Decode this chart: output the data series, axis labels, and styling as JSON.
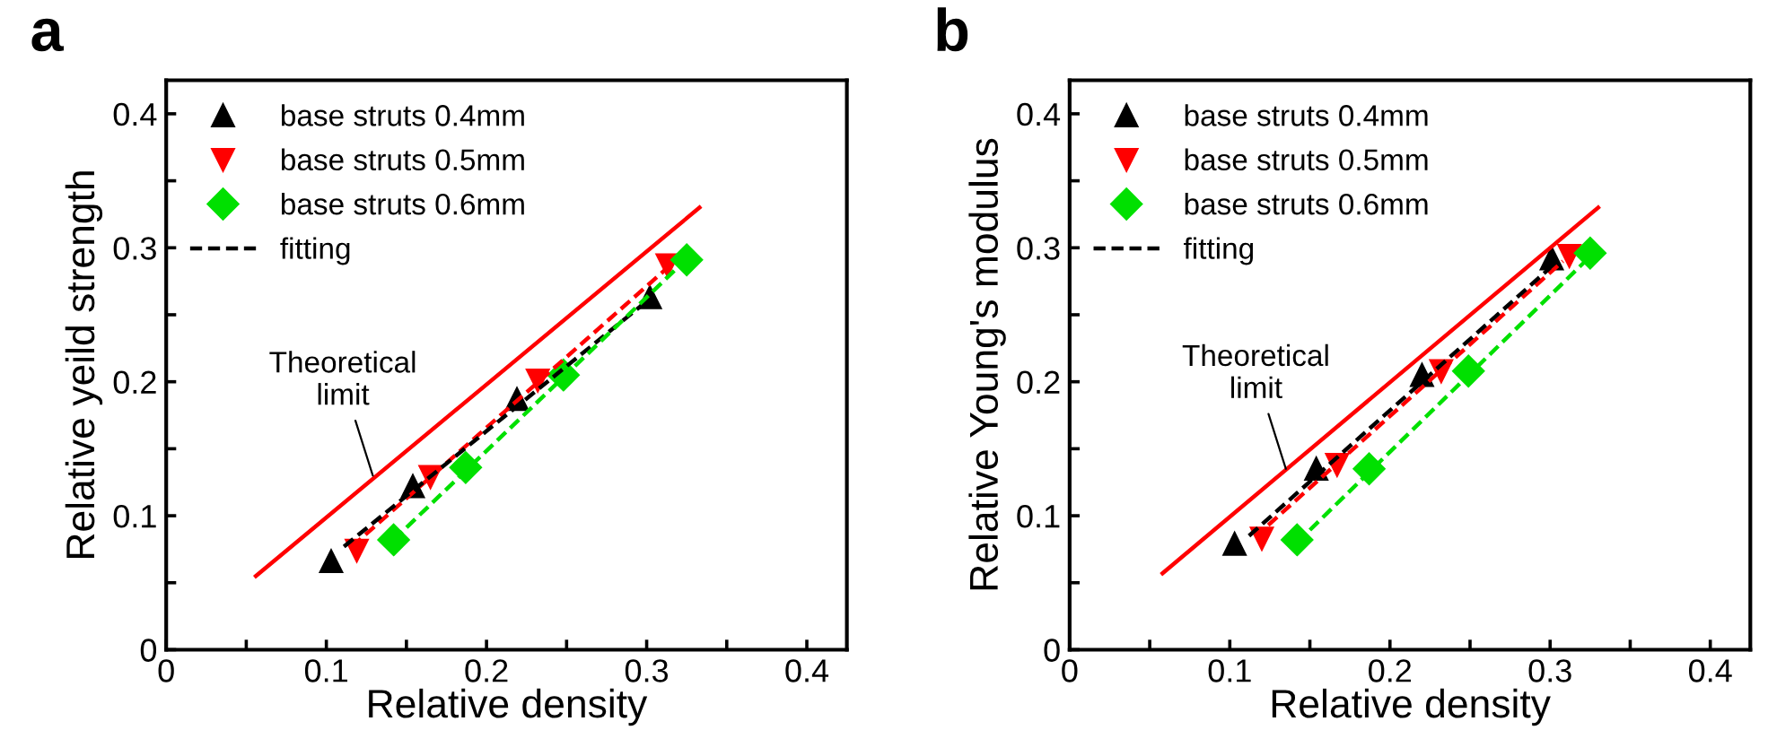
{
  "chart_data": [
    {
      "type": "scatter",
      "title": "a",
      "xlabel": "Relative density",
      "ylabel": "Relative yeild strength",
      "xlim": [
        0,
        0.425
      ],
      "ylim": [
        0,
        0.425
      ],
      "xticks": [
        0,
        {
          "value": 0.05,
          "label": null
        },
        0.1,
        {
          "value": 0.15,
          "label": null
        },
        0.2,
        {
          "value": 0.25,
          "label": null
        },
        0.3,
        {
          "value": 0.35,
          "label": null
        },
        0.4
      ],
      "yticks": [
        0,
        {
          "value": 0.05,
          "label": null
        },
        0.1,
        {
          "value": 0.15,
          "label": null
        },
        0.2,
        {
          "value": 0.25,
          "label": null
        },
        0.3,
        {
          "value": 0.35,
          "label": null
        },
        0.4
      ],
      "grid": false,
      "legend": "top left",
      "annotations": [
        {
          "text": "Theoretical\nlimit",
          "x": 0.129,
          "y": 0.13
        }
      ],
      "series": [
        {
          "name": "base struts 0.4mm",
          "type": "scatter",
          "marker": "triangle",
          "color": "#000000",
          "x": [
            0.103,
            0.154,
            0.219,
            0.302
          ],
          "values": [
            0.066,
            0.122,
            0.187,
            0.263
          ]
        },
        {
          "name": "base struts 0.5mm",
          "type": "scatter",
          "marker": "triangle_down",
          "color": "#ff0000",
          "x": [
            0.119,
            0.165,
            0.232,
            0.313
          ],
          "values": [
            0.074,
            0.129,
            0.201,
            0.287
          ]
        },
        {
          "name": "base struts 0.6mm",
          "type": "scatter",
          "marker": "diamond",
          "color": "#00e000",
          "x": [
            0.142,
            0.187,
            0.248,
            0.325
          ],
          "values": [
            0.082,
            0.136,
            0.205,
            0.291
          ]
        },
        {
          "type": "line",
          "line_style": "dashed",
          "color": "#ff0000",
          "x": [
            0.116,
            0.312
          ],
          "values": [
            0.077,
            0.284
          ]
        },
        {
          "name": "fitting",
          "type": "line",
          "line_style": "dashed",
          "color": "#000000",
          "x": [
            0.111,
            0.302
          ],
          "values": [
            0.077,
            0.262
          ]
        },
        {
          "type": "line",
          "line_style": "dashed",
          "color": "#00e000",
          "x": [
            0.142,
            0.327
          ],
          "values": [
            0.082,
            0.294
          ]
        },
        {
          "type": "line",
          "line_style": "solid",
          "color": "#ff0000",
          "x": [
            0.056,
            0.333
          ],
          "values": [
            0.055,
            0.33
          ]
        }
      ]
    },
    {
      "type": "scatter",
      "title": "b",
      "xlabel": "Relative density",
      "ylabel": "Relative Young's modulus",
      "xlim": [
        0,
        0.425
      ],
      "ylim": [
        0,
        0.425
      ],
      "xticks": [
        0,
        {
          "value": 0.05,
          "label": null
        },
        0.1,
        {
          "value": 0.15,
          "label": null
        },
        0.2,
        {
          "value": 0.25,
          "label": null
        },
        0.3,
        {
          "value": 0.35,
          "label": null
        },
        0.4
      ],
      "yticks": [
        0,
        {
          "value": 0.05,
          "label": null
        },
        0.1,
        {
          "value": 0.15,
          "label": null
        },
        0.2,
        {
          "value": 0.25,
          "label": null
        },
        0.3,
        {
          "value": 0.35,
          "label": null
        },
        0.4
      ],
      "grid": false,
      "legend": "top left",
      "annotations": [
        {
          "text": "Theoretical\nlimit",
          "x": 0.135,
          "y": 0.135
        }
      ],
      "series": [
        {
          "name": "base struts 0.4mm",
          "type": "scatter",
          "marker": "triangle",
          "color": "#000000",
          "x": [
            0.103,
            0.154,
            0.22,
            0.301
          ],
          "values": [
            0.079,
            0.135,
            0.205,
            0.292
          ]
        },
        {
          "name": "base struts 0.5mm",
          "type": "scatter",
          "marker": "triangle_down",
          "color": "#ff0000",
          "x": [
            0.12,
            0.167,
            0.232,
            0.312
          ],
          "values": [
            0.083,
            0.138,
            0.208,
            0.294
          ]
        },
        {
          "name": "base struts 0.6mm",
          "type": "scatter",
          "marker": "diamond",
          "color": "#00e000",
          "x": [
            0.142,
            0.187,
            0.249,
            0.325
          ],
          "values": [
            0.082,
            0.135,
            0.208,
            0.296
          ]
        },
        {
          "type": "line",
          "line_style": "dashed",
          "color": "#ff0000",
          "x": [
            0.124,
            0.308
          ],
          "values": [
            0.093,
            0.29
          ]
        },
        {
          "name": "fitting",
          "type": "line",
          "line_style": "dashed",
          "color": "#000000",
          "x": [
            0.112,
            0.3
          ],
          "values": [
            0.085,
            0.285
          ]
        },
        {
          "type": "line",
          "line_style": "dashed",
          "color": "#00e000",
          "x": [
            0.142,
            0.322
          ],
          "values": [
            0.08,
            0.29
          ]
        },
        {
          "type": "line",
          "line_style": "solid",
          "color": "#ff0000",
          "x": [
            0.058,
            0.33
          ],
          "values": [
            0.057,
            0.33
          ]
        }
      ]
    }
  ]
}
